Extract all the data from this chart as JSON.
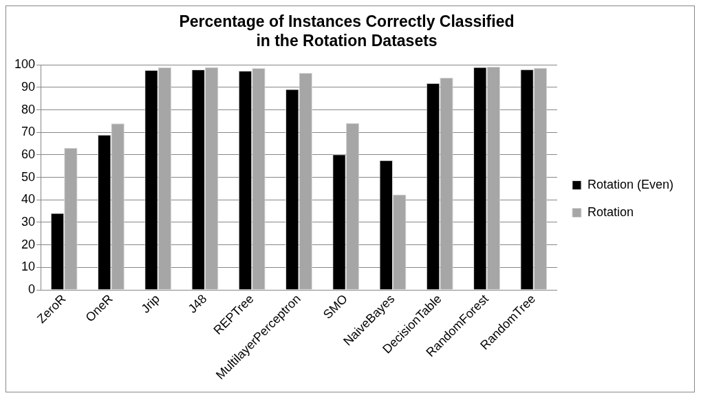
{
  "chart_data": {
    "type": "bar",
    "title": "Percentage of Instances Correctly Classified\nin the Rotation Datasets",
    "categories": [
      "ZeroR",
      "OneR",
      "Jrip",
      "J48",
      "REPTree",
      "MultilayerPerceptron",
      "SMO",
      "NaiveBayes",
      "DecisionTable",
      "RandomForest",
      "RandomTree"
    ],
    "series": [
      {
        "name": "Rotation (Even)",
        "color": "#000000",
        "values": [
          34.1,
          68.9,
          97.7,
          97.9,
          97.4,
          89.2,
          60.2,
          57.6,
          91.9,
          99,
          98
        ]
      },
      {
        "name": "Rotation",
        "color": "#a6a6a6",
        "values": [
          63.1,
          74,
          98.9,
          99,
          98.5,
          96.4,
          74.1,
          42.4,
          94.3,
          99.2,
          98.7
        ]
      }
    ],
    "ylim": [
      0,
      100
    ],
    "yticks": [
      0,
      10,
      20,
      30,
      40,
      50,
      60,
      70,
      80,
      90,
      100
    ],
    "grid": "y",
    "legend": "right"
  }
}
